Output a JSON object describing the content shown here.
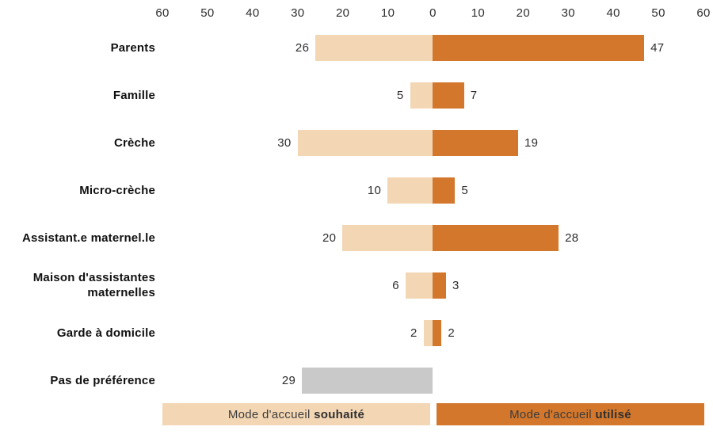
{
  "chart_data": {
    "type": "bar",
    "variant": "diverging-horizontal",
    "title": "",
    "categories": [
      "Parents",
      "Famille",
      "Crèche",
      "Micro-crèche",
      "Assistant.e maternel.le",
      "Maison d'assistantes maternelles",
      "Garde à domicile",
      "Pas de préférence"
    ],
    "series": [
      {
        "name": "Mode d'accueil souhaité",
        "side": "left",
        "values": [
          26,
          5,
          30,
          10,
          20,
          6,
          2,
          29
        ],
        "color": "#f3d6b4"
      },
      {
        "name": "Mode d'accueil utilisé",
        "side": "right",
        "values": [
          47,
          7,
          19,
          5,
          28,
          3,
          2,
          null
        ],
        "color": "#d2772c"
      }
    ],
    "axis_ticks": [
      "60",
      "50",
      "40",
      "30",
      "20",
      "10",
      "0",
      "10",
      "20",
      "30",
      "40",
      "50",
      "60"
    ],
    "xlim": [
      -60,
      60
    ],
    "grid": false,
    "legend_position": "bottom",
    "special_rows": [
      {
        "index": 7,
        "left_color": "#c9c9c9",
        "note": "no right bar, neutral gray"
      }
    ]
  },
  "legend": [
    {
      "prefix": "Mode d'accueil ",
      "bold": "souhaité",
      "color": "#f3d6b4"
    },
    {
      "prefix": "Mode d'accueil ",
      "bold": "utilisé",
      "color": "#d2772c"
    }
  ],
  "colors": {
    "wished": "#f3d6b4",
    "used": "#d2772c",
    "neutral": "#c9c9c9",
    "text": "#2e2e2e"
  }
}
